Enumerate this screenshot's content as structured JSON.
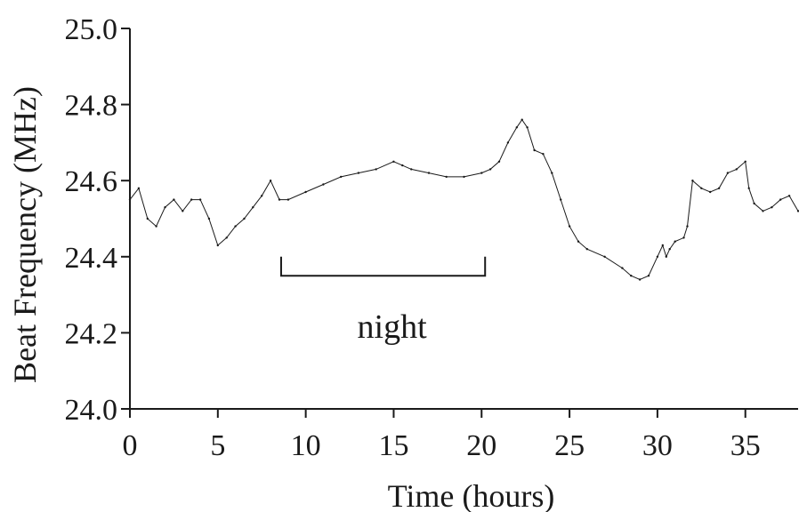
{
  "chart_data": {
    "type": "line",
    "xlabel": "Time (hours)",
    "ylabel": "Beat Frequency (MHz)",
    "xlim": [
      0,
      38
    ],
    "ylim": [
      24.0,
      25.0
    ],
    "x_ticks": [
      0,
      5,
      10,
      15,
      20,
      25,
      30,
      35
    ],
    "y_ticks": [
      24.0,
      24.2,
      24.4,
      24.6,
      24.8,
      25.0
    ],
    "x_tick_labels": [
      "0",
      "5",
      "10",
      "15",
      "20",
      "25",
      "30",
      "35"
    ],
    "y_tick_labels": [
      "24.0",
      "24.2",
      "24.4",
      "24.6",
      "24.8",
      "25.0"
    ],
    "grid": false,
    "series": [
      {
        "color": "#1a1a1a",
        "x": [
          0,
          0.5,
          1,
          1.5,
          2,
          2.5,
          3,
          3.5,
          4,
          4.5,
          5,
          5.5,
          6,
          6.5,
          7,
          7.5,
          8,
          8.5,
          9,
          10,
          11,
          12,
          13,
          14,
          15,
          15.5,
          16,
          17,
          18,
          19,
          20,
          20.5,
          21,
          21.5,
          22,
          22.3,
          22.6,
          23,
          23.5,
          24,
          24.5,
          25,
          25.5,
          26,
          27,
          28,
          28.5,
          29,
          29.5,
          30,
          30.3,
          30.5,
          30.7,
          31,
          31.5,
          31.7,
          32,
          32.5,
          33,
          33.5,
          34,
          34.5,
          35,
          35.2,
          35.5,
          36,
          36.5,
          37,
          37.5,
          38
        ],
        "values": [
          24.55,
          24.58,
          24.5,
          24.48,
          24.53,
          24.55,
          24.52,
          24.55,
          24.55,
          24.5,
          24.43,
          24.45,
          24.48,
          24.5,
          24.53,
          24.56,
          24.6,
          24.55,
          24.55,
          24.57,
          24.59,
          24.61,
          24.62,
          24.63,
          24.65,
          24.64,
          24.63,
          24.62,
          24.61,
          24.61,
          24.62,
          24.63,
          24.65,
          24.7,
          24.74,
          24.76,
          24.74,
          24.68,
          24.67,
          24.62,
          24.55,
          24.48,
          24.44,
          24.42,
          24.4,
          24.37,
          24.35,
          24.34,
          24.35,
          24.4,
          24.43,
          24.4,
          24.42,
          24.44,
          24.45,
          24.48,
          24.6,
          24.58,
          24.57,
          24.58,
          24.62,
          24.63,
          24.65,
          24.58,
          24.54,
          24.52,
          24.53,
          24.55,
          24.56,
          24.52
        ]
      }
    ],
    "annotations": [
      {
        "text": "night",
        "x_start": 8.6,
        "x_end": 20.2,
        "bracket_y": 24.35,
        "bracket_top": 24.4,
        "label_y": 24.22
      }
    ]
  }
}
